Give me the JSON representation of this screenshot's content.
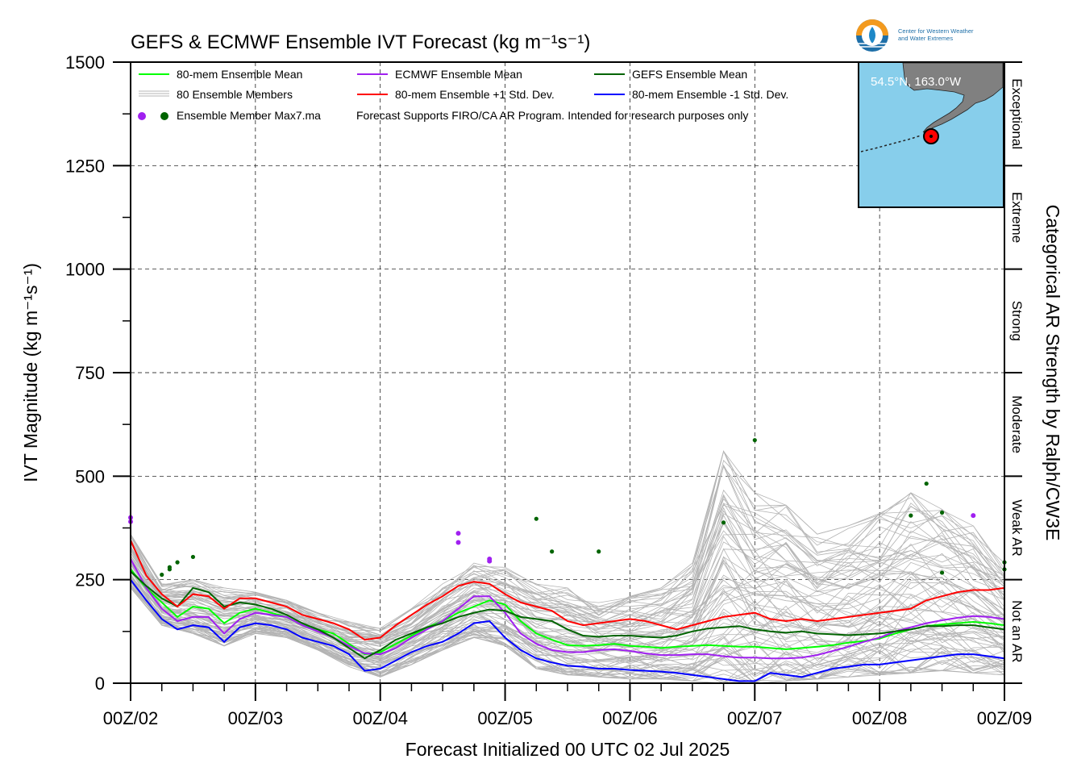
{
  "title": "GEFS & ECMWF Ensemble IVT Forecast (kg m⁻¹s⁻¹)",
  "logo": {
    "org_line1": "Center for Western Weather",
    "org_line2": "and Water Extremes",
    "icon": "water-drop-icon",
    "colors": {
      "ring_top": "#F39A1E",
      "ring_bottom": "#1E6FA8",
      "drop": "#1E88C7"
    }
  },
  "inset_map": {
    "label": "54.5°N, 163.0°W",
    "ocean_color": "#87CEEB",
    "land_color": "#808080",
    "marker_color": "#FF0000"
  },
  "y_axis_label": "IVT Magnitude (kg m⁻¹s⁻¹)",
  "x_axis_label": "Forecast Initialized 00 UTC 02 Jul 2025",
  "right_axis_label": "Categorical AR Strength by Ralph/CW3E",
  "categories": [
    {
      "label": "Not an AR",
      "from": 0,
      "to": 250
    },
    {
      "label": "Weak AR",
      "from": 250,
      "to": 500
    },
    {
      "label": "Moderate",
      "from": 500,
      "to": 750
    },
    {
      "label": "Strong",
      "from": 750,
      "to": 1000
    },
    {
      "label": "Extreme",
      "from": 1000,
      "to": 1250
    },
    {
      "label": "Exceptional",
      "from": 1250,
      "to": 1500
    }
  ],
  "legend": {
    "mean": "80-mem Ensemble Mean",
    "members": "80 Ensemble Members",
    "max": "Ensemble Member Max7.ma",
    "ecmwf_mean": "ECMWF Ensemble Mean",
    "plus_sd": "80-mem Ensemble +1 Std. Dev.",
    "gefs_mean": "GEFS Ensemble Mean",
    "minus_sd": "80-mem Ensemble -1 Std. Dev.",
    "note": "Forecast Supports FIRO/CA AR Program. Intended for research purposes only"
  },
  "chart_data": {
    "type": "line",
    "x_unit": "hours since 00Z/02",
    "xlim": [
      0,
      168
    ],
    "ylim": [
      0,
      1500
    ],
    "x_ticks": [
      0,
      24,
      48,
      72,
      96,
      120,
      144,
      168
    ],
    "x_tick_labels": [
      "00Z/02",
      "00Z/03",
      "00Z/04",
      "00Z/05",
      "00Z/06",
      "00Z/07",
      "00Z/08",
      "00Z/09"
    ],
    "y_ticks": [
      0,
      250,
      500,
      750,
      1000,
      1250,
      1500
    ],
    "y_tick_labels": [
      "0",
      "250",
      "500",
      "750",
      "1000",
      "1250",
      "1500"
    ],
    "grid": true,
    "legend_placement": "top-left",
    "series": [
      {
        "name": "80-mem Ensemble Mean",
        "color": "#00FF00",
        "x": [
          0,
          3,
          6,
          9,
          12,
          15,
          18,
          21,
          24,
          27,
          30,
          33,
          36,
          39,
          42,
          45,
          48,
          51,
          54,
          57,
          60,
          63,
          66,
          69,
          72,
          75,
          78,
          81,
          84,
          87,
          90,
          93,
          96,
          99,
          102,
          105,
          108,
          111,
          114,
          117,
          120,
          123,
          126,
          129,
          132,
          135,
          138,
          141,
          144,
          147,
          150,
          153,
          156,
          159,
          162,
          165,
          168
        ],
        "y": [
          275,
          230,
          195,
          160,
          185,
          180,
          145,
          170,
          180,
          170,
          160,
          140,
          130,
          120,
          95,
          70,
          75,
          95,
          115,
          135,
          150,
          170,
          185,
          200,
          190,
          150,
          120,
          105,
          92,
          90,
          92,
          95,
          90,
          88,
          85,
          88,
          90,
          92,
          90,
          88,
          88,
          85,
          82,
          85,
          88,
          92,
          98,
          102,
          108,
          120,
          130,
          138,
          142,
          145,
          148,
          145,
          140
        ]
      },
      {
        "name": "ECMWF Ensemble Mean",
        "color": "#A020F0",
        "x": [
          0,
          3,
          6,
          9,
          12,
          15,
          18,
          21,
          24,
          27,
          30,
          33,
          36,
          39,
          42,
          45,
          48,
          51,
          54,
          57,
          60,
          63,
          66,
          69,
          72,
          75,
          78,
          81,
          84,
          87,
          90,
          93,
          96,
          99,
          102,
          105,
          108,
          111,
          114,
          117,
          120,
          123,
          126,
          129,
          132,
          135,
          138,
          141,
          144,
          147,
          150,
          153,
          156,
          159,
          162,
          165,
          168
        ],
        "y": [
          300,
          230,
          180,
          150,
          160,
          160,
          120,
          155,
          170,
          165,
          160,
          140,
          125,
          110,
          90,
          72,
          70,
          85,
          110,
          130,
          150,
          180,
          210,
          210,
          170,
          120,
          95,
          80,
          75,
          75,
          80,
          82,
          78,
          72,
          68,
          68,
          70,
          70,
          65,
          62,
          62,
          60,
          60,
          62,
          68,
          78,
          88,
          100,
          110,
          125,
          135,
          145,
          152,
          158,
          162,
          160,
          155
        ]
      },
      {
        "name": "GEFS Ensemble Mean",
        "color": "#006400",
        "x": [
          0,
          3,
          6,
          9,
          12,
          15,
          18,
          21,
          24,
          27,
          30,
          33,
          36,
          39,
          42,
          45,
          48,
          51,
          54,
          57,
          60,
          63,
          66,
          69,
          72,
          75,
          78,
          81,
          84,
          87,
          90,
          93,
          96,
          99,
          102,
          105,
          108,
          111,
          114,
          117,
          120,
          123,
          126,
          129,
          132,
          135,
          138,
          141,
          144,
          147,
          150,
          153,
          156,
          159,
          162,
          165,
          168
        ],
        "y": [
          270,
          235,
          205,
          185,
          230,
          220,
          185,
          195,
          190,
          180,
          165,
          145,
          130,
          110,
          85,
          60,
          80,
          105,
          120,
          135,
          145,
          160,
          170,
          178,
          175,
          160,
          155,
          150,
          130,
          115,
          112,
          115,
          115,
          112,
          110,
          115,
          125,
          132,
          135,
          138,
          130,
          125,
          122,
          125,
          120,
          118,
          116,
          118,
          120,
          125,
          130,
          138,
          138,
          140,
          140,
          135,
          130
        ]
      },
      {
        "name": "80-mem Ensemble +1 Std. Dev.",
        "color": "#FF0000",
        "x": [
          0,
          3,
          6,
          9,
          12,
          15,
          18,
          21,
          24,
          27,
          30,
          33,
          36,
          39,
          42,
          45,
          48,
          51,
          54,
          57,
          60,
          63,
          66,
          69,
          72,
          75,
          78,
          81,
          84,
          87,
          90,
          93,
          96,
          99,
          102,
          105,
          108,
          111,
          114,
          117,
          120,
          123,
          126,
          129,
          132,
          135,
          138,
          141,
          144,
          147,
          150,
          153,
          156,
          159,
          162,
          165,
          168
        ],
        "y": [
          345,
          260,
          215,
          185,
          215,
          210,
          180,
          205,
          205,
          195,
          185,
          165,
          155,
          145,
          130,
          105,
          110,
          140,
          165,
          190,
          210,
          235,
          245,
          240,
          215,
          195,
          185,
          175,
          150,
          140,
          145,
          150,
          155,
          150,
          140,
          130,
          140,
          150,
          160,
          165,
          170,
          155,
          150,
          155,
          150,
          155,
          160,
          165,
          170,
          175,
          180,
          200,
          210,
          220,
          225,
          225,
          230
        ]
      },
      {
        "name": "80-mem Ensemble -1 Std. Dev.",
        "color": "#0000FF",
        "x": [
          0,
          3,
          6,
          9,
          12,
          15,
          18,
          21,
          24,
          27,
          30,
          33,
          36,
          39,
          42,
          45,
          48,
          51,
          54,
          57,
          60,
          63,
          66,
          69,
          72,
          75,
          78,
          81,
          84,
          87,
          90,
          93,
          96,
          99,
          102,
          105,
          108,
          111,
          114,
          117,
          120,
          123,
          126,
          129,
          132,
          135,
          138,
          141,
          144,
          147,
          150,
          153,
          156,
          159,
          162,
          165,
          168
        ],
        "y": [
          250,
          200,
          155,
          130,
          140,
          135,
          100,
          135,
          145,
          140,
          130,
          110,
          100,
          90,
          70,
          30,
          35,
          55,
          75,
          90,
          100,
          120,
          145,
          150,
          110,
          80,
          60,
          50,
          42,
          40,
          35,
          35,
          32,
          30,
          28,
          25,
          20,
          15,
          10,
          5,
          5,
          25,
          20,
          15,
          25,
          35,
          40,
          45,
          45,
          50,
          55,
          60,
          65,
          70,
          70,
          65,
          60
        ]
      }
    ],
    "member_envelope": {
      "name": "80 Ensemble Members",
      "color": "#B4B4B4",
      "x": [
        0,
        6,
        12,
        18,
        24,
        30,
        36,
        42,
        48,
        54,
        60,
        66,
        72,
        78,
        84,
        90,
        96,
        102,
        108,
        114,
        120,
        126,
        132,
        138,
        144,
        150,
        156,
        162,
        168
      ],
      "low": [
        230,
        140,
        120,
        90,
        120,
        110,
        80,
        40,
        15,
        45,
        80,
        110,
        90,
        35,
        20,
        15,
        10,
        10,
        5,
        0,
        0,
        5,
        10,
        15,
        20,
        25,
        30,
        25,
        20
      ],
      "high": [
        360,
        240,
        250,
        230,
        220,
        200,
        170,
        150,
        140,
        180,
        240,
        290,
        280,
        240,
        230,
        200,
        210,
        230,
        290,
        560,
        460,
        430,
        360,
        380,
        410,
        460,
        420,
        380,
        290
      ]
    },
    "max_markers": {
      "name": "Ensemble Member Max7.ma",
      "points": [
        {
          "x": 0,
          "y": 400,
          "color": "#A020F0"
        },
        {
          "x": 0,
          "y": 390,
          "color": "#A020F0"
        },
        {
          "x": 6,
          "y": 262,
          "color": "#006400"
        },
        {
          "x": 7.5,
          "y": 280,
          "color": "#006400"
        },
        {
          "x": 7.5,
          "y": 275,
          "color": "#006400"
        },
        {
          "x": 9,
          "y": 292,
          "color": "#006400"
        },
        {
          "x": 12,
          "y": 305,
          "color": "#006400"
        },
        {
          "x": 63,
          "y": 362,
          "color": "#A020F0"
        },
        {
          "x": 63,
          "y": 340,
          "color": "#A020F0"
        },
        {
          "x": 69,
          "y": 300,
          "color": "#A020F0"
        },
        {
          "x": 69,
          "y": 295,
          "color": "#A020F0"
        },
        {
          "x": 78,
          "y": 397,
          "color": "#006400"
        },
        {
          "x": 81,
          "y": 318,
          "color": "#006400"
        },
        {
          "x": 90,
          "y": 318,
          "color": "#006400"
        },
        {
          "x": 114,
          "y": 388,
          "color": "#006400"
        },
        {
          "x": 120,
          "y": 587,
          "color": "#006400"
        },
        {
          "x": 150,
          "y": 405,
          "color": "#006400"
        },
        {
          "x": 153,
          "y": 482,
          "color": "#006400"
        },
        {
          "x": 156,
          "y": 412,
          "color": "#006400"
        },
        {
          "x": 156,
          "y": 267,
          "color": "#006400"
        },
        {
          "x": 162,
          "y": 405,
          "color": "#A020F0"
        },
        {
          "x": 168,
          "y": 292,
          "color": "#006400"
        },
        {
          "x": 168,
          "y": 275,
          "color": "#006400"
        }
      ]
    }
  }
}
